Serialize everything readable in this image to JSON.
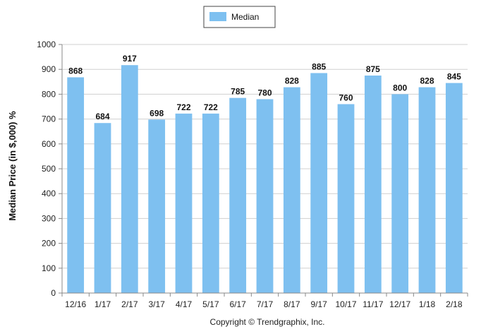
{
  "chart_data": {
    "type": "bar",
    "categories": [
      "12/16",
      "1/17",
      "2/17",
      "3/17",
      "4/17",
      "5/17",
      "6/17",
      "7/17",
      "8/17",
      "9/17",
      "10/17",
      "11/17",
      "12/17",
      "1/18",
      "2/18"
    ],
    "series": [
      {
        "name": "Median",
        "values": [
          868,
          684,
          917,
          698,
          722,
          722,
          785,
          780,
          828,
          885,
          760,
          875,
          800,
          828,
          845
        ]
      }
    ],
    "title": "",
    "xlabel": "",
    "ylabel": "Median Price (in $,000) %",
    "ylim": [
      0,
      1000
    ],
    "yticks": [
      0,
      100,
      200,
      300,
      400,
      500,
      600,
      700,
      800,
      900,
      1000
    ],
    "grid": true,
    "legend_position": "top-center",
    "bar_color": "#7ec0f0",
    "grid_color": "#d0d0d0"
  },
  "footer": {
    "copyright": "Copyright © Trendgraphix, Inc."
  }
}
